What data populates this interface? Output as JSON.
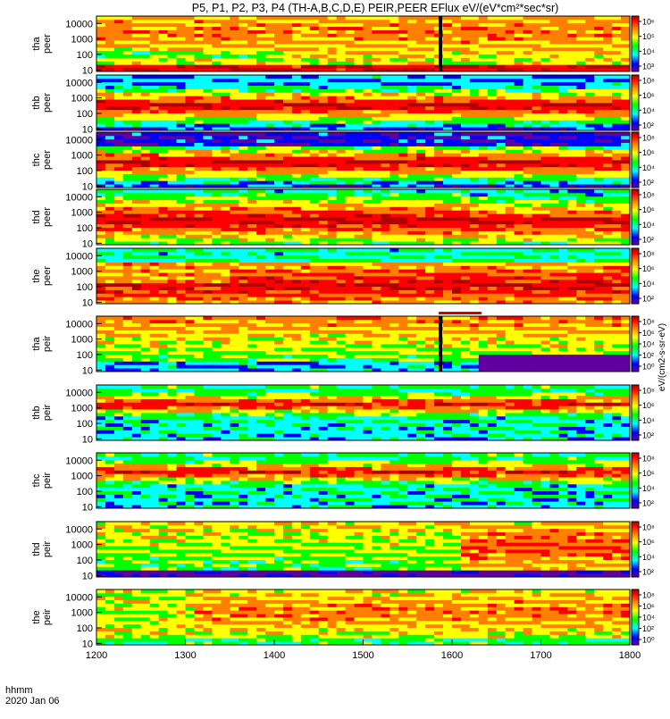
{
  "title": "P5, P1, P2, P3, P4 (TH-A,B,C,D,E) PEIR,PEER EFlux eV/(eV*cm²*sec*sr)",
  "footer": {
    "line1": "hhmm",
    "line2": "2020 Jan 06"
  },
  "colorbar_label": "eV/(cm2-s-sr-eV)",
  "colors": {
    "dark_red": "#b00000",
    "red": "#ff0000",
    "orange": "#ff8000",
    "yellow": "#ffff00",
    "green": "#00ff00",
    "cyan": "#00ffff",
    "blue": "#0000ff",
    "purple": "#6000a0",
    "black": "#000000",
    "flag_bar": "#d00000"
  },
  "chart_data": {
    "type": "heatmap",
    "x_ticks": [
      "1200",
      "1300",
      "1400",
      "1500",
      "1600",
      "1700",
      "1800"
    ],
    "xlim": [
      1200,
      1800
    ],
    "y_scale": "log",
    "ylim": [
      8,
      30000
    ],
    "y_ticks": [
      "10",
      "100",
      "1000",
      "10000"
    ],
    "flag_interval": [
      1585,
      1633
    ],
    "panels": [
      {
        "label": "tha peer",
        "cbar_ticks": [
          "10⁶",
          "10⁵",
          "10⁴",
          "10³"
        ]
      },
      {
        "label": "thb peer",
        "cbar_ticks": [
          "10⁸",
          "10⁶",
          "10⁴",
          "10²"
        ]
      },
      {
        "label": "thc peer",
        "cbar_ticks": [
          "10⁸",
          "10⁶",
          "10⁴",
          "10²"
        ]
      },
      {
        "label": "thd peer",
        "cbar_ticks": [
          "10⁸",
          "10⁶",
          "10⁴",
          "10²"
        ]
      },
      {
        "label": "the peer",
        "cbar_ticks": [
          "10⁸",
          "10⁶",
          "10⁴",
          "10²"
        ]
      },
      {
        "label": "tha peir",
        "cbar_ticks": [
          "10⁸",
          "10⁶",
          "10⁴",
          "10²",
          "10⁰"
        ]
      },
      {
        "label": "thb peir",
        "cbar_ticks": [
          "10⁸",
          "10⁶",
          "10⁴",
          "10²"
        ]
      },
      {
        "label": "thc peir",
        "cbar_ticks": [
          "10⁸",
          "10⁶",
          "10⁴",
          "10²"
        ]
      },
      {
        "label": "thd peir",
        "cbar_ticks": [
          "10⁸",
          "10⁶",
          "10⁴",
          "10²"
        ]
      },
      {
        "label": "the peir",
        "cbar_ticks": [
          "10⁸",
          "10⁶",
          "10⁴",
          "10²",
          "10⁰"
        ]
      }
    ]
  }
}
